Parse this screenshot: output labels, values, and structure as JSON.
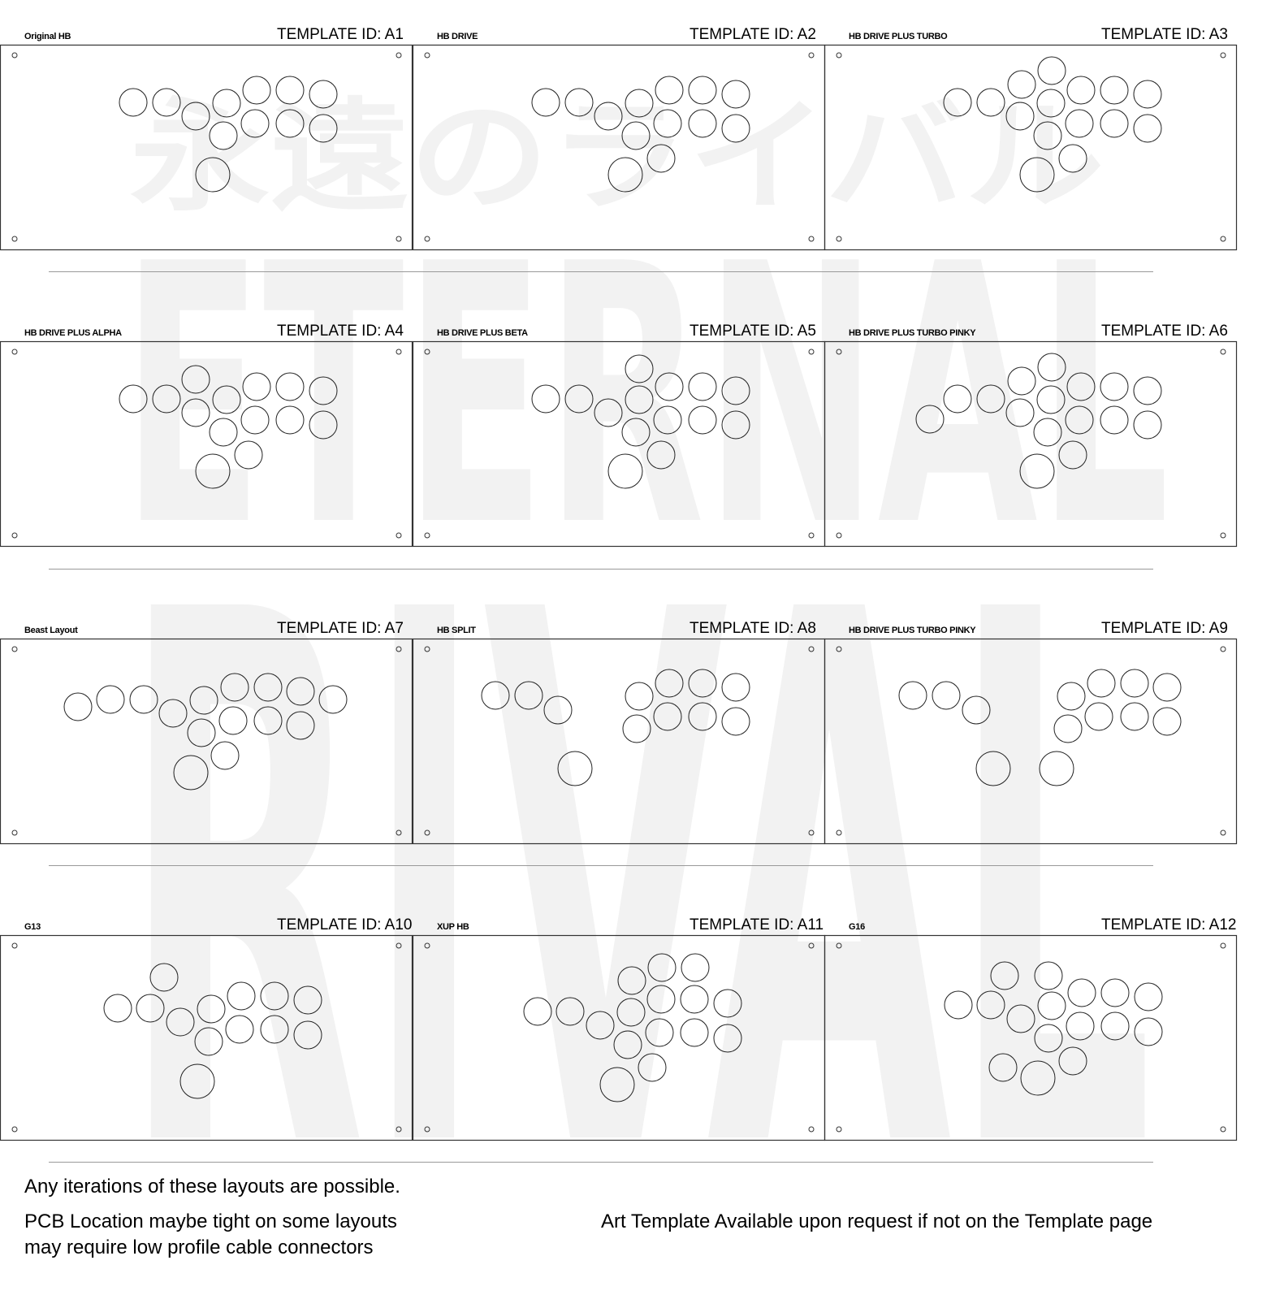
{
  "watermark": {
    "japanese": "永遠のライバル",
    "line1": "ETERNAL",
    "line2": "RIVAL"
  },
  "templates": [
    {
      "name": "Original HB",
      "id": "TEMPLATE ID:  A1"
    },
    {
      "name": "HB DRIVE",
      "id": "TEMPLATE ID:  A2"
    },
    {
      "name": "HB DRIVE PLUS TURBO",
      "id": "TEMPLATE ID:  A3"
    },
    {
      "name": "HB DRIVE PLUS ALPHA",
      "id": "TEMPLATE ID:  A4"
    },
    {
      "name": "HB DRIVE PLUS BETA",
      "id": "TEMPLATE ID:  A5"
    },
    {
      "name": "HB DRIVE PLUS TURBO PINKY",
      "id": "TEMPLATE ID:  A6"
    },
    {
      "name": "Beast Layout",
      "id": "TEMPLATE ID:  A7"
    },
    {
      "name": "HB SPLIT",
      "id": "TEMPLATE ID:  A8"
    },
    {
      "name": "HB DRIVE PLUS TURBO PINKY",
      "id": "TEMPLATE ID:  A9"
    },
    {
      "name": "G13",
      "id": "TEMPLATE ID:  A10"
    },
    {
      "name": "XUP HB",
      "id": "TEMPLATE ID:  A11"
    },
    {
      "name": "G16",
      "id": "TEMPLATE ID:  A12"
    }
  ],
  "notes": {
    "iterations": "Any iterations of these layouts are possible.",
    "pcb_line1": "PCB Location maybe tight on some layouts",
    "pcb_line2": "may require low profile cable connectors",
    "art": "Art Template Available upon request if not on the Template page"
  }
}
